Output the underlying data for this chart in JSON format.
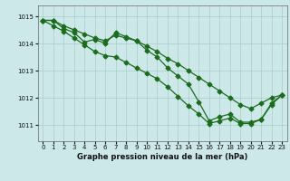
{
  "xlabel": "Graphe pression niveau de la mer (hPa)",
  "xlim": [
    -0.5,
    23.5
  ],
  "ylim": [
    1010.4,
    1015.4
  ],
  "yticks": [
    1011,
    1012,
    1013,
    1014,
    1015
  ],
  "xticks": [
    0,
    1,
    2,
    3,
    4,
    5,
    6,
    7,
    8,
    9,
    10,
    11,
    12,
    13,
    14,
    15,
    16,
    17,
    18,
    19,
    20,
    21,
    22,
    23
  ],
  "bg_color": "#cde8e8",
  "grid_color": "#aacccc",
  "line_color": "#1a6e1a",
  "line1": [
    1014.85,
    1014.85,
    1014.65,
    1014.5,
    1014.35,
    1014.2,
    1014.1,
    1014.3,
    1014.2,
    1014.1,
    1013.9,
    1013.7,
    1013.45,
    1013.25,
    1013.0,
    1012.75,
    1012.5,
    1012.25,
    1012.0,
    1011.75,
    1011.6,
    1011.8,
    1012.0,
    1012.1
  ],
  "line2": [
    1014.85,
    1014.85,
    1014.55,
    1014.4,
    1014.05,
    1014.15,
    1014.0,
    1014.4,
    1014.25,
    1014.1,
    1013.75,
    1013.5,
    1013.1,
    1012.8,
    1012.5,
    1011.85,
    1011.15,
    1011.3,
    1011.4,
    1011.1,
    1011.1,
    1011.2,
    1011.8,
    1012.1
  ],
  "line3": [
    1014.85,
    1014.65,
    1014.45,
    1014.2,
    1013.95,
    1013.7,
    1013.55,
    1013.5,
    1013.3,
    1013.1,
    1012.9,
    1012.7,
    1012.4,
    1012.05,
    1011.7,
    1011.4,
    1011.05,
    1011.15,
    1011.25,
    1011.05,
    1011.05,
    1011.2,
    1011.75,
    1012.1
  ],
  "marker": "D",
  "markersize": 2.5,
  "linewidth": 0.9
}
